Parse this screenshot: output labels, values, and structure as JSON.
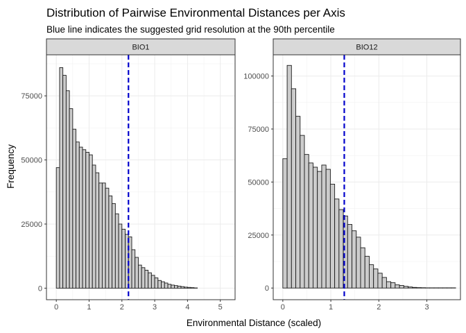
{
  "chart_data": {
    "type": "histogram",
    "title": "Distribution of Pairwise Environmental Distances per Axis",
    "subtitle": "Blue line indicates the suggested grid resolution at the 90th percentile",
    "xlabel": "Environmental Distance (scaled)",
    "ylabel": "Frequency",
    "grid": true,
    "bar_fill": "#cccccc",
    "bar_stroke": "#1a1a1a",
    "line_color": "#0000cc",
    "panels": [
      {
        "name": "BIO1",
        "bin_start": 0,
        "bin_width": 0.1,
        "values": [
          47000,
          86000,
          83000,
          77000,
          70000,
          62000,
          57000,
          55000,
          54000,
          53000,
          52000,
          48000,
          45000,
          41000,
          41000,
          39000,
          36000,
          33000,
          29000,
          25000,
          23000,
          21000,
          20000,
          15000,
          12000,
          9000,
          8000,
          7000,
          6000,
          5000,
          4000,
          3000,
          2500,
          2000,
          1500,
          1200,
          1000,
          800,
          600,
          400,
          300,
          200,
          100
        ],
        "xlim": [
          -0.3,
          5.45
        ],
        "ylim": [
          -4500,
          91000
        ],
        "xticks": [
          0,
          1,
          2,
          3,
          4,
          5
        ],
        "xtick_labels": [
          "0",
          "1",
          "2",
          "3",
          "4",
          "5"
        ],
        "yticks": [
          0,
          25000,
          50000,
          75000
        ],
        "ytick_labels": [
          "0",
          "25000",
          "50000",
          "75000"
        ],
        "vline": 2.2
      },
      {
        "name": "BIO12",
        "bin_start": 0,
        "bin_width": 0.09,
        "values": [
          61000,
          105000,
          94000,
          81000,
          72000,
          63000,
          59000,
          57000,
          55000,
          58000,
          56000,
          49000,
          42000,
          37000,
          34000,
          30000,
          27000,
          24000,
          19000,
          15000,
          11000,
          9000,
          7000,
          5000,
          3000,
          2500,
          1500,
          1200,
          800,
          500,
          300,
          200,
          150,
          100,
          100,
          100,
          100,
          100,
          100,
          100
        ],
        "xlim": [
          -0.2,
          3.7
        ],
        "ylim": [
          -5500,
          110000
        ],
        "xticks": [
          0,
          1,
          2,
          3
        ],
        "xtick_labels": [
          "0",
          "1",
          "2",
          "3"
        ],
        "yticks": [
          0,
          25000,
          50000,
          75000,
          100000
        ],
        "ytick_labels": [
          "0",
          "25000",
          "50000",
          "75000",
          "100000"
        ],
        "vline": 1.28
      }
    ]
  }
}
